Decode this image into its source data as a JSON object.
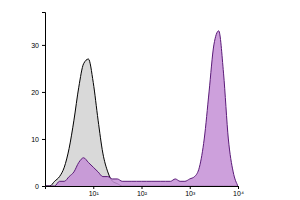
{
  "chart_data": {
    "type": "area",
    "log": "x",
    "x": [
      1,
      1.26,
      1.58,
      2,
      2.51,
      3.16,
      3.98,
      5.01,
      6.31,
      7.94,
      10,
      12.6,
      15.8,
      20,
      25.1,
      31.6,
      39.8,
      50.1,
      63.1,
      79.4,
      100,
      126,
      158,
      200,
      251,
      316,
      398,
      501,
      631,
      794,
      1000,
      1259,
      1585,
      1995,
      2512,
      3162,
      3981,
      5012,
      6310,
      7943,
      10000
    ],
    "series": [
      {
        "color": "#d9d9d9",
        "values": [
          0,
          0,
          1,
          2,
          4,
          8,
          14,
          21,
          26,
          27,
          22,
          14,
          7,
          3,
          1,
          0.5,
          0,
          0,
          0,
          0,
          0,
          0,
          0,
          0,
          0,
          0,
          0,
          0,
          0,
          0,
          0,
          0,
          0,
          0,
          0,
          0,
          0,
          0,
          0,
          0,
          0
        ]
      },
      {
        "color": "#c48fd6",
        "values": [
          0,
          0,
          0,
          1,
          1,
          2,
          3,
          5,
          6,
          5,
          4,
          3,
          2,
          2,
          1.5,
          1.5,
          1,
          1,
          1,
          1,
          1,
          1,
          1,
          1,
          1,
          1,
          1,
          1.5,
          1,
          1,
          1.5,
          2,
          4,
          10,
          20,
          30,
          33,
          24,
          10,
          3,
          0
        ]
      }
    ],
    "xlim": [
      1,
      10000
    ],
    "xticks": [
      {
        "value": 10,
        "label": "10¹"
      },
      {
        "value": 100,
        "label": "10²"
      },
      {
        "value": 1000,
        "label": "10³"
      },
      {
        "value": 10000,
        "label": "10⁴"
      }
    ],
    "ylim": [
      0,
      37
    ],
    "yticks": [
      0,
      10,
      20,
      30
    ]
  }
}
